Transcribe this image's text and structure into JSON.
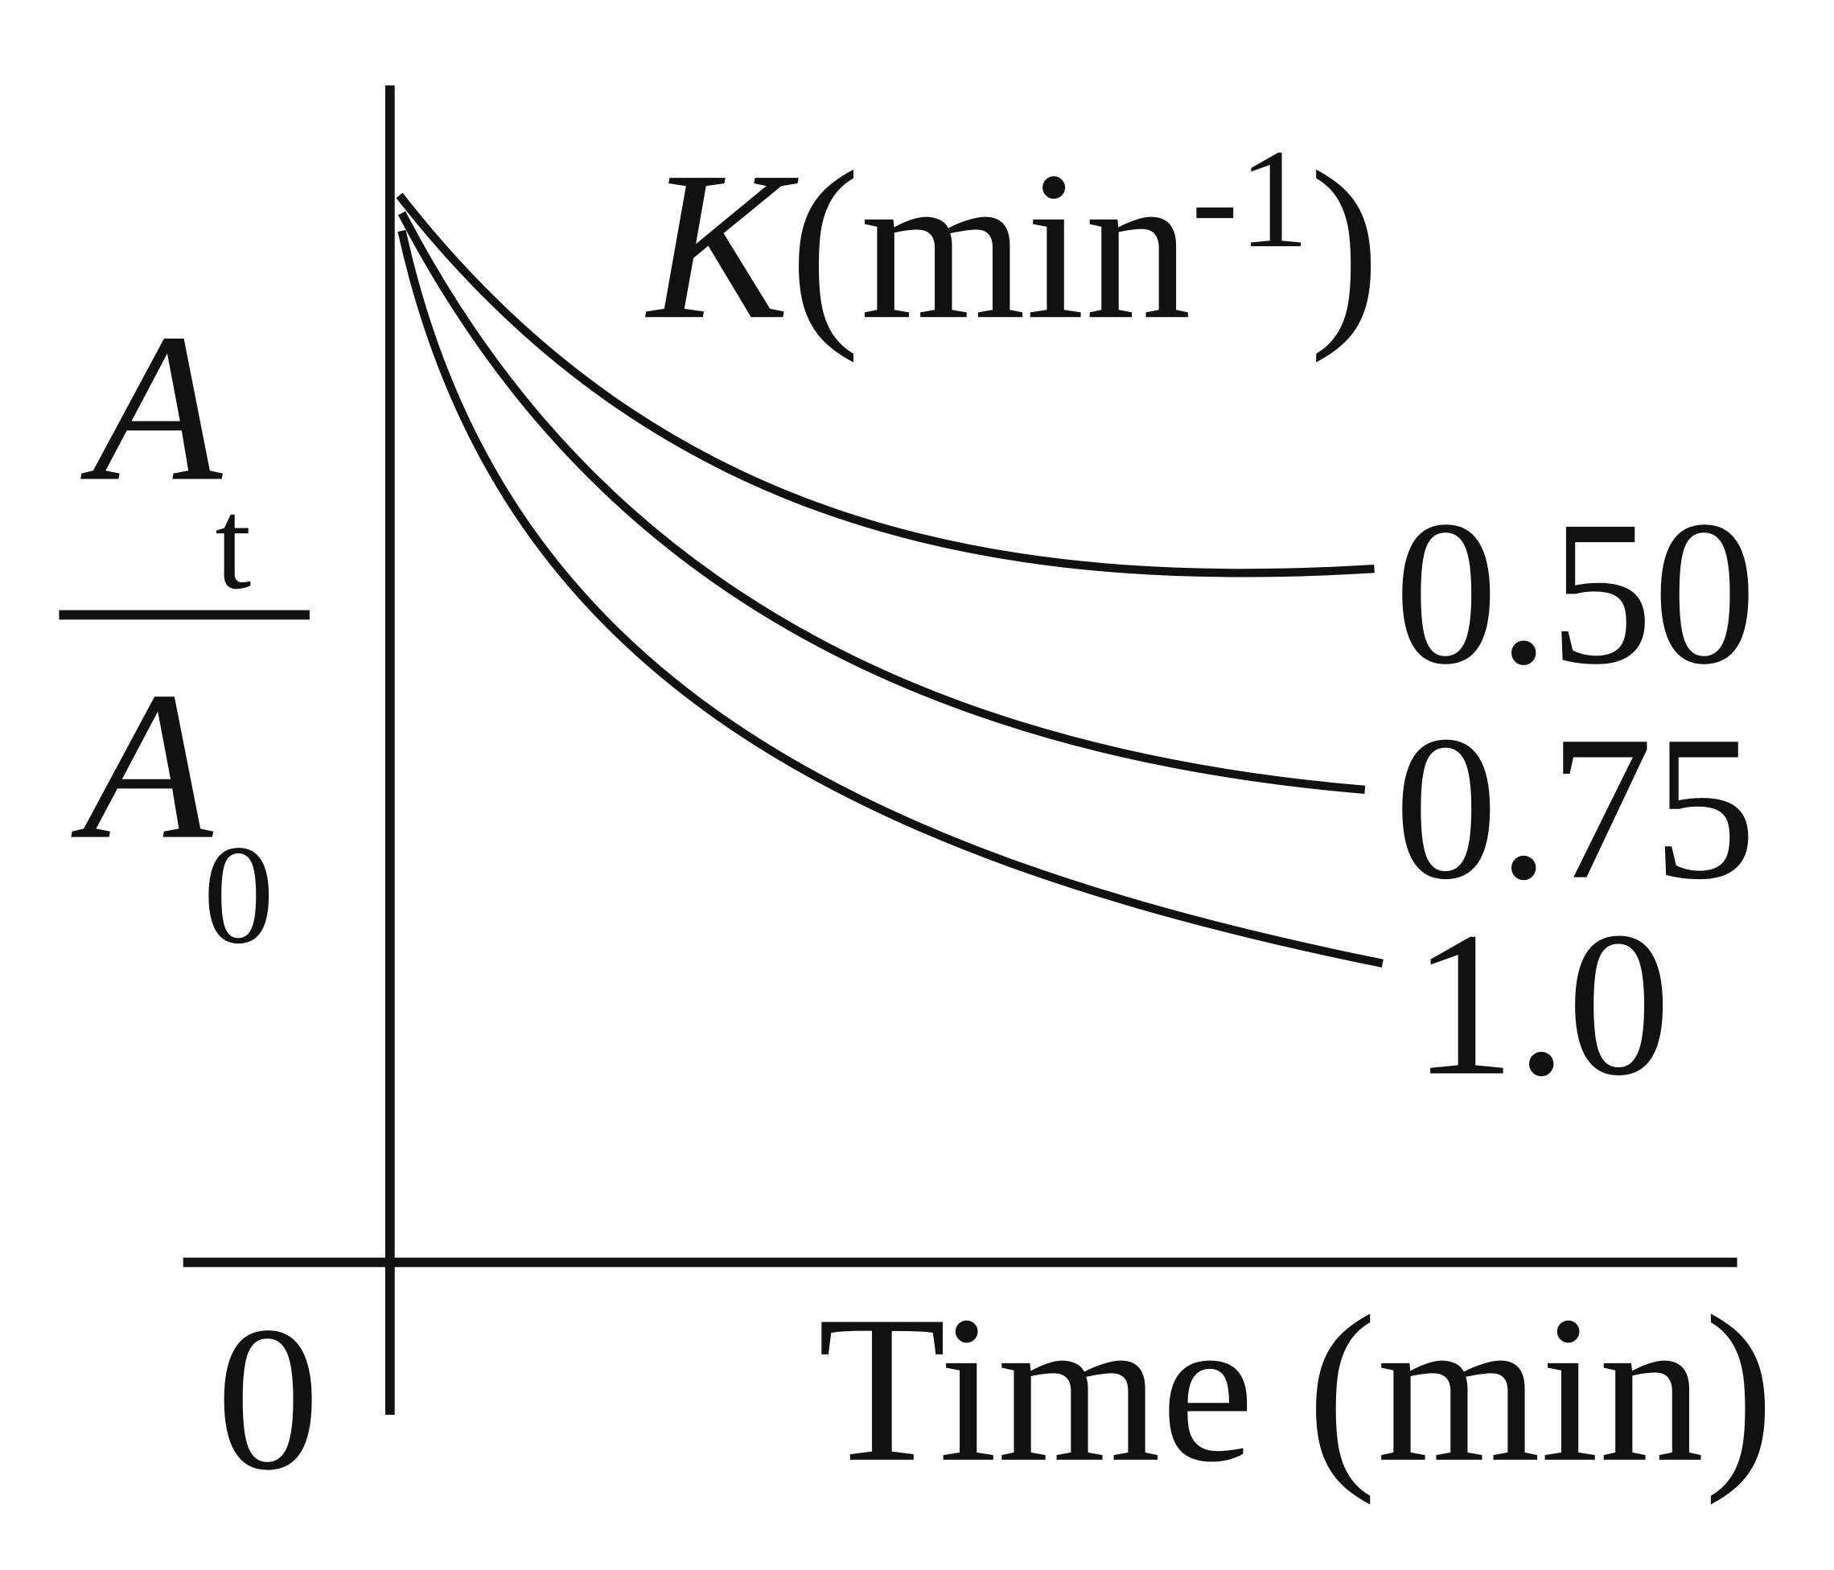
{
  "y_label": {
    "numerator": "A",
    "numerator_sub": "t",
    "denominator": "A",
    "denominator_sub": "0"
  },
  "origin": "0",
  "x_label": "Time (min)",
  "legend_title": {
    "symbol": "K",
    "unit": "(min",
    "unit_exp": "-1",
    "unit_close": ")"
  },
  "curves": [
    {
      "label": "0.50"
    },
    {
      "label": "0.75"
    },
    {
      "label": "1.0"
    }
  ]
}
